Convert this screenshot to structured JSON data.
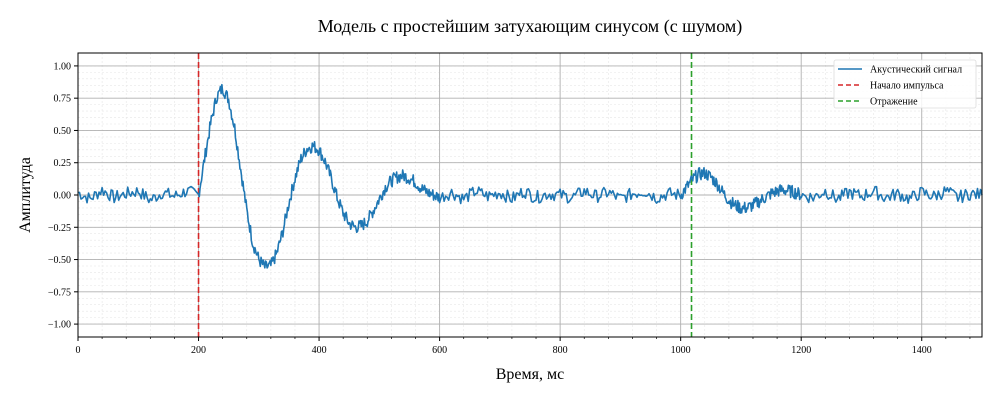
{
  "chart_data": {
    "type": "line",
    "title": "Модель с простейшим затухающим синусом (с шумом)",
    "xlabel": "Время, мс",
    "ylabel": "Амплитуда",
    "xlim": [
      0,
      1500
    ],
    "ylim": [
      -1.1,
      1.1
    ],
    "xticks": [
      0,
      200,
      400,
      600,
      800,
      1000,
      1200,
      1400
    ],
    "yticks": [
      -1.0,
      -0.75,
      -0.5,
      -0.25,
      0.0,
      0.25,
      0.5,
      0.75,
      1.0
    ],
    "xtick_labels": [
      "0",
      "200",
      "400",
      "600",
      "800",
      "1000",
      "1200",
      "1400"
    ],
    "ytick_labels": [
      "−1.00",
      "−0.75",
      "−0.50",
      "−0.25",
      "0.00",
      "0.25",
      "0.50",
      "0.75",
      "1.00"
    ],
    "grid": true,
    "minor_grid": true,
    "legend_position": "top-right",
    "series": [
      {
        "name": "Акустический сигнал",
        "style": "solid",
        "color": "#1f77b4",
        "x": [
          0,
          20,
          40,
          60,
          80,
          100,
          120,
          140,
          160,
          180,
          200,
          210,
          220,
          230,
          240,
          250,
          260,
          270,
          280,
          290,
          300,
          310,
          320,
          330,
          340,
          350,
          360,
          370,
          380,
          390,
          400,
          410,
          420,
          430,
          440,
          450,
          460,
          470,
          480,
          490,
          500,
          510,
          520,
          530,
          540,
          550,
          560,
          570,
          580,
          590,
          600,
          620,
          640,
          660,
          680,
          700,
          720,
          740,
          760,
          780,
          800,
          820,
          840,
          860,
          880,
          900,
          920,
          940,
          960,
          980,
          1000,
          1010,
          1020,
          1030,
          1040,
          1050,
          1060,
          1070,
          1080,
          1090,
          1100,
          1110,
          1120,
          1130,
          1140,
          1150,
          1160,
          1170,
          1180,
          1190,
          1200,
          1220,
          1240,
          1260,
          1280,
          1300,
          1320,
          1340,
          1360,
          1380,
          1400,
          1420,
          1440,
          1460,
          1480,
          1500
        ],
        "values": [
          0.02,
          -0.03,
          0.04,
          -0.02,
          0.01,
          0.03,
          -0.04,
          0.02,
          -0.01,
          0.03,
          0.0,
          0.28,
          0.55,
          0.76,
          0.83,
          0.74,
          0.52,
          0.2,
          -0.12,
          -0.37,
          -0.5,
          -0.56,
          -0.55,
          -0.45,
          -0.28,
          -0.06,
          0.13,
          0.28,
          0.36,
          0.38,
          0.35,
          0.26,
          0.13,
          -0.02,
          -0.14,
          -0.22,
          -0.25,
          -0.24,
          -0.2,
          -0.12,
          -0.03,
          0.06,
          0.11,
          0.14,
          0.15,
          0.13,
          0.1,
          0.05,
          0.02,
          0.0,
          -0.02,
          0.02,
          -0.03,
          0.03,
          -0.01,
          0.02,
          -0.03,
          0.03,
          -0.02,
          0.01,
          0.0,
          -0.02,
          0.03,
          -0.01,
          0.02,
          -0.03,
          0.01,
          0.03,
          -0.02,
          0.01,
          0.0,
          0.06,
          0.12,
          0.16,
          0.17,
          0.14,
          0.09,
          0.02,
          -0.04,
          -0.08,
          -0.1,
          -0.1,
          -0.08,
          -0.05,
          -0.02,
          0.01,
          0.03,
          0.04,
          0.03,
          0.02,
          0.0,
          -0.02,
          0.03,
          -0.03,
          0.02,
          -0.01,
          0.03,
          -0.02,
          0.01,
          -0.03,
          0.02,
          -0.01,
          0.03,
          -0.02,
          0.01,
          0.0
        ]
      },
      {
        "name": "Начало импульса",
        "style": "dashed",
        "color": "#d62728",
        "x_value": 200
      },
      {
        "name": "Отражение",
        "style": "dashed",
        "color": "#2ca02c",
        "x_value": 1018
      }
    ]
  }
}
